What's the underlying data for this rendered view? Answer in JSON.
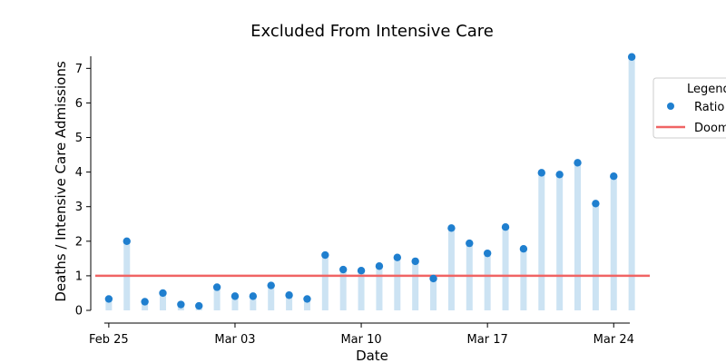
{
  "chart_data": {
    "type": "scatter",
    "title": "Excluded From Intensive Care",
    "xlabel": "Date",
    "ylabel": "Deaths / Intensive Care Admissions",
    "x": [
      "2020-02-25",
      "2020-02-26",
      "2020-02-27",
      "2020-02-28",
      "2020-02-29",
      "2020-03-01",
      "2020-03-02",
      "2020-03-03",
      "2020-03-04",
      "2020-03-05",
      "2020-03-06",
      "2020-03-07",
      "2020-03-08",
      "2020-03-09",
      "2020-03-10",
      "2020-03-11",
      "2020-03-12",
      "2020-03-13",
      "2020-03-14",
      "2020-03-15",
      "2020-03-16",
      "2020-03-17",
      "2020-03-18",
      "2020-03-19",
      "2020-03-20",
      "2020-03-21",
      "2020-03-22",
      "2020-03-23",
      "2020-03-24",
      "2020-03-25"
    ],
    "series": [
      {
        "name": "Ratio",
        "values": [
          0.33,
          2.0,
          0.25,
          0.5,
          0.17,
          0.13,
          0.67,
          0.41,
          0.41,
          0.72,
          0.44,
          0.33,
          1.6,
          1.18,
          1.15,
          1.28,
          1.53,
          1.42,
          0.92,
          2.38,
          1.94,
          1.65,
          2.41,
          1.78,
          3.98,
          3.93,
          4.27,
          3.09,
          3.88,
          7.33
        ],
        "color": "#1f7fcf",
        "stem_color": "#cce3f3"
      }
    ],
    "reference_line": {
      "name": "Doom",
      "value": 1,
      "color": "#f06464"
    },
    "x_ticks": [
      {
        "date": "2020-02-25",
        "label": "Feb 25"
      },
      {
        "date": "2020-03-03",
        "label": "Mar 03"
      },
      {
        "date": "2020-03-10",
        "label": "Mar 10"
      },
      {
        "date": "2020-03-17",
        "label": "Mar 17"
      },
      {
        "date": "2020-03-24",
        "label": "Mar 24"
      }
    ],
    "y_ticks": [
      0,
      1,
      2,
      3,
      4,
      5,
      6,
      7
    ],
    "xlim": [
      "2020-02-24",
      "2020-03-26"
    ],
    "ylim": [
      0,
      7.35
    ],
    "grid": false,
    "legend": {
      "title": "Legend",
      "placement": "right, outside",
      "entries": [
        "Ratio",
        "Doom"
      ]
    }
  }
}
